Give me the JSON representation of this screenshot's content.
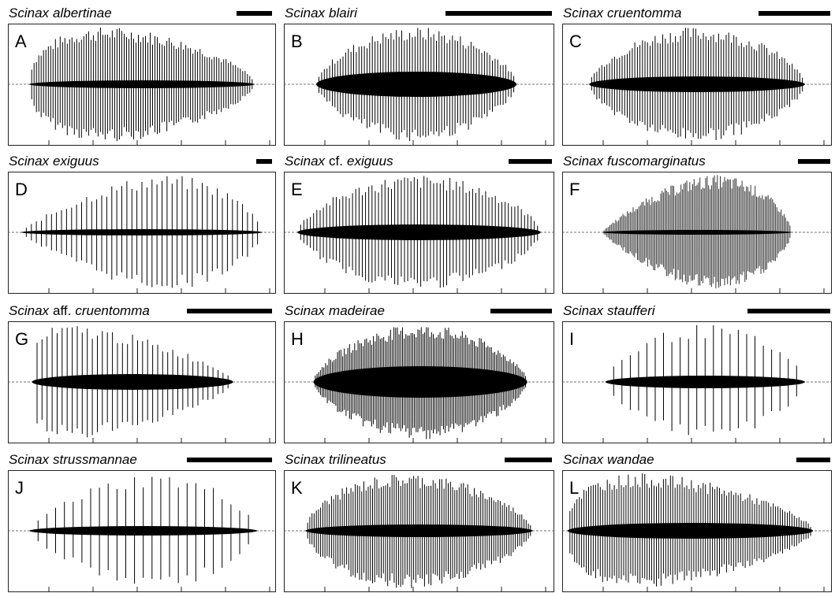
{
  "panels": [
    {
      "letter": "A",
      "genus": "Scinax",
      "epithet": "albertinae"
    },
    {
      "letter": "B",
      "genus": "Scinax",
      "epithet": "blairi"
    },
    {
      "letter": "C",
      "genus": "Scinax",
      "epithet": "cruentomma"
    },
    {
      "letter": "D",
      "genus": "Scinax",
      "epithet": "exiguus"
    },
    {
      "letter": "E",
      "genus": "Scinax",
      "qualifier": "cf.",
      "epithet": "exiguus"
    },
    {
      "letter": "F",
      "genus": "Scinax",
      "epithet": "fuscomarginatus"
    },
    {
      "letter": "G",
      "genus": "Scinax",
      "qualifier": "aff.",
      "epithet": "cruentomma"
    },
    {
      "letter": "H",
      "genus": "Scinax",
      "epithet": "madeirae"
    },
    {
      "letter": "I",
      "genus": "Scinax",
      "epithet": "staufferi"
    },
    {
      "letter": "J",
      "genus": "Scinax",
      "epithet": "strussmannae"
    },
    {
      "letter": "K",
      "genus": "Scinax",
      "epithet": "trilineatus"
    },
    {
      "letter": "L",
      "genus": "Scinax",
      "epithet": "wandae"
    }
  ]
}
